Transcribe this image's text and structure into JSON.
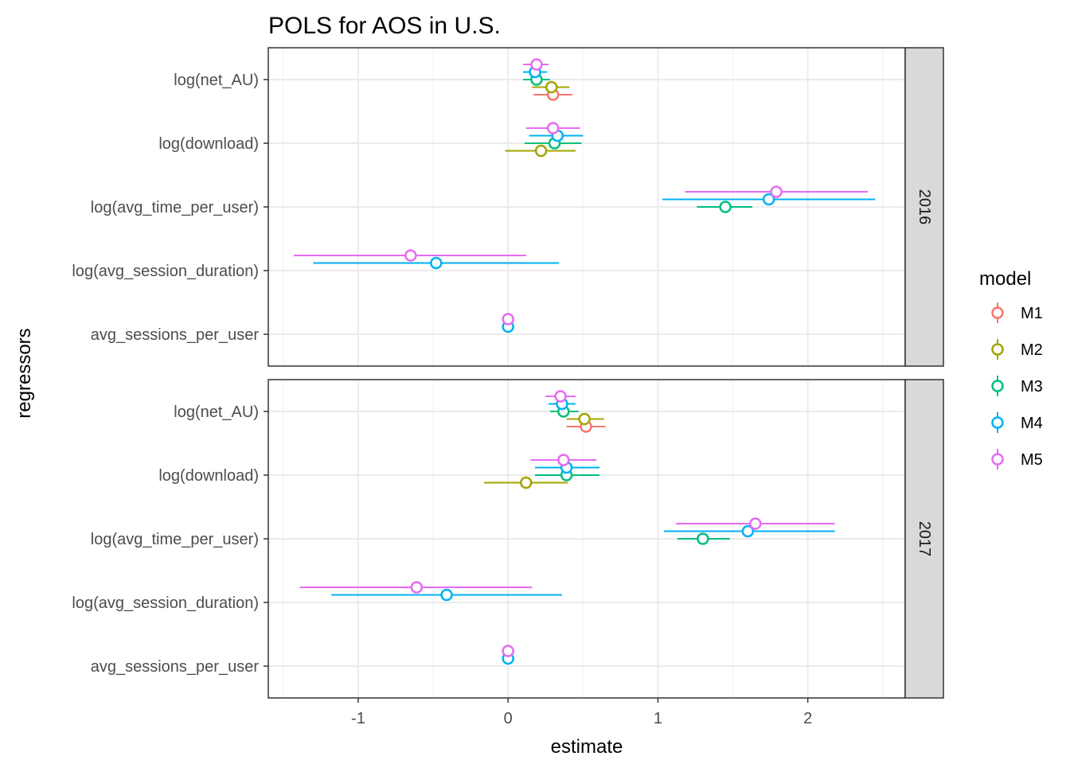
{
  "chart_data": {
    "type": "scatter",
    "title": "POLS for AOS in U.S.",
    "xlabel": "estimate",
    "ylabel": "regressors",
    "xlim": [
      -1.6,
      2.65
    ],
    "x_ticks": [
      -1,
      0,
      1,
      2
    ],
    "x_tick_labels": [
      "-1",
      "0",
      "1",
      "2"
    ],
    "categories": [
      "log(net_AU)",
      "log(download)",
      "log(avg_time_per_user)",
      "log(avg_session_duration)",
      "avg_sessions_per_user"
    ],
    "legend": {
      "title": "model",
      "position": "right",
      "items": [
        {
          "name": "M1",
          "color": "#F8766D"
        },
        {
          "name": "M2",
          "color": "#A3A500"
        },
        {
          "name": "M3",
          "color": "#00BF7D"
        },
        {
          "name": "M4",
          "color": "#00B0F6"
        },
        {
          "name": "M5",
          "color": "#E76BF3"
        }
      ]
    },
    "grid": true,
    "panels": [
      {
        "label": "2016",
        "points": [
          {
            "model": "M1",
            "regressor": "log(net_AU)",
            "estimate": 0.3,
            "lo": 0.17,
            "hi": 0.43
          },
          {
            "model": "M2",
            "regressor": "log(net_AU)",
            "estimate": 0.29,
            "lo": 0.16,
            "hi": 0.41
          },
          {
            "model": "M3",
            "regressor": "log(net_AU)",
            "estimate": 0.19,
            "lo": 0.1,
            "hi": 0.28
          },
          {
            "model": "M4",
            "regressor": "log(net_AU)",
            "estimate": 0.18,
            "lo": 0.1,
            "hi": 0.26
          },
          {
            "model": "M5",
            "regressor": "log(net_AU)",
            "estimate": 0.19,
            "lo": 0.1,
            "hi": 0.27
          },
          {
            "model": "M2",
            "regressor": "log(download)",
            "estimate": 0.22,
            "lo": -0.02,
            "hi": 0.45
          },
          {
            "model": "M3",
            "regressor": "log(download)",
            "estimate": 0.31,
            "lo": 0.11,
            "hi": 0.49
          },
          {
            "model": "M4",
            "regressor": "log(download)",
            "estimate": 0.33,
            "lo": 0.14,
            "hi": 0.5
          },
          {
            "model": "M5",
            "regressor": "log(download)",
            "estimate": 0.3,
            "lo": 0.12,
            "hi": 0.48
          },
          {
            "model": "M3",
            "regressor": "log(avg_time_per_user)",
            "estimate": 1.45,
            "lo": 1.26,
            "hi": 1.63
          },
          {
            "model": "M4",
            "regressor": "log(avg_time_per_user)",
            "estimate": 1.74,
            "lo": 1.03,
            "hi": 2.45
          },
          {
            "model": "M5",
            "regressor": "log(avg_time_per_user)",
            "estimate": 1.79,
            "lo": 1.18,
            "hi": 2.4
          },
          {
            "model": "M4",
            "regressor": "log(avg_session_duration)",
            "estimate": -0.48,
            "lo": -1.3,
            "hi": 0.34
          },
          {
            "model": "M5",
            "regressor": "log(avg_session_duration)",
            "estimate": -0.65,
            "lo": -1.43,
            "hi": 0.12
          },
          {
            "model": "M4",
            "regressor": "avg_sessions_per_user",
            "estimate": 0.0,
            "lo": -0.01,
            "hi": 0.01
          },
          {
            "model": "M5",
            "regressor": "avg_sessions_per_user",
            "estimate": 0.0,
            "lo": -0.01,
            "hi": 0.01
          }
        ]
      },
      {
        "label": "2017",
        "points": [
          {
            "model": "M1",
            "regressor": "log(net_AU)",
            "estimate": 0.52,
            "lo": 0.39,
            "hi": 0.65
          },
          {
            "model": "M2",
            "regressor": "log(net_AU)",
            "estimate": 0.51,
            "lo": 0.39,
            "hi": 0.64
          },
          {
            "model": "M3",
            "regressor": "log(net_AU)",
            "estimate": 0.37,
            "lo": 0.28,
            "hi": 0.47
          },
          {
            "model": "M4",
            "regressor": "log(net_AU)",
            "estimate": 0.36,
            "lo": 0.27,
            "hi": 0.45
          },
          {
            "model": "M5",
            "regressor": "log(net_AU)",
            "estimate": 0.35,
            "lo": 0.25,
            "hi": 0.45
          },
          {
            "model": "M2",
            "regressor": "log(download)",
            "estimate": 0.12,
            "lo": -0.16,
            "hi": 0.4
          },
          {
            "model": "M3",
            "regressor": "log(download)",
            "estimate": 0.39,
            "lo": 0.18,
            "hi": 0.61
          },
          {
            "model": "M4",
            "regressor": "log(download)",
            "estimate": 0.39,
            "lo": 0.18,
            "hi": 0.61
          },
          {
            "model": "M5",
            "regressor": "log(download)",
            "estimate": 0.37,
            "lo": 0.15,
            "hi": 0.59
          },
          {
            "model": "M3",
            "regressor": "log(avg_time_per_user)",
            "estimate": 1.3,
            "lo": 1.13,
            "hi": 1.48
          },
          {
            "model": "M4",
            "regressor": "log(avg_time_per_user)",
            "estimate": 1.6,
            "lo": 1.04,
            "hi": 2.18
          },
          {
            "model": "M5",
            "regressor": "log(avg_time_per_user)",
            "estimate": 1.65,
            "lo": 1.12,
            "hi": 2.18
          },
          {
            "model": "M4",
            "regressor": "log(avg_session_duration)",
            "estimate": -0.41,
            "lo": -1.18,
            "hi": 0.36
          },
          {
            "model": "M5",
            "regressor": "log(avg_session_duration)",
            "estimate": -0.61,
            "lo": -1.39,
            "hi": 0.16
          },
          {
            "model": "M4",
            "regressor": "avg_sessions_per_user",
            "estimate": 0.0,
            "lo": -0.01,
            "hi": 0.01
          },
          {
            "model": "M5",
            "regressor": "avg_sessions_per_user",
            "estimate": 0.0,
            "lo": -0.01,
            "hi": 0.01
          }
        ]
      }
    ]
  }
}
